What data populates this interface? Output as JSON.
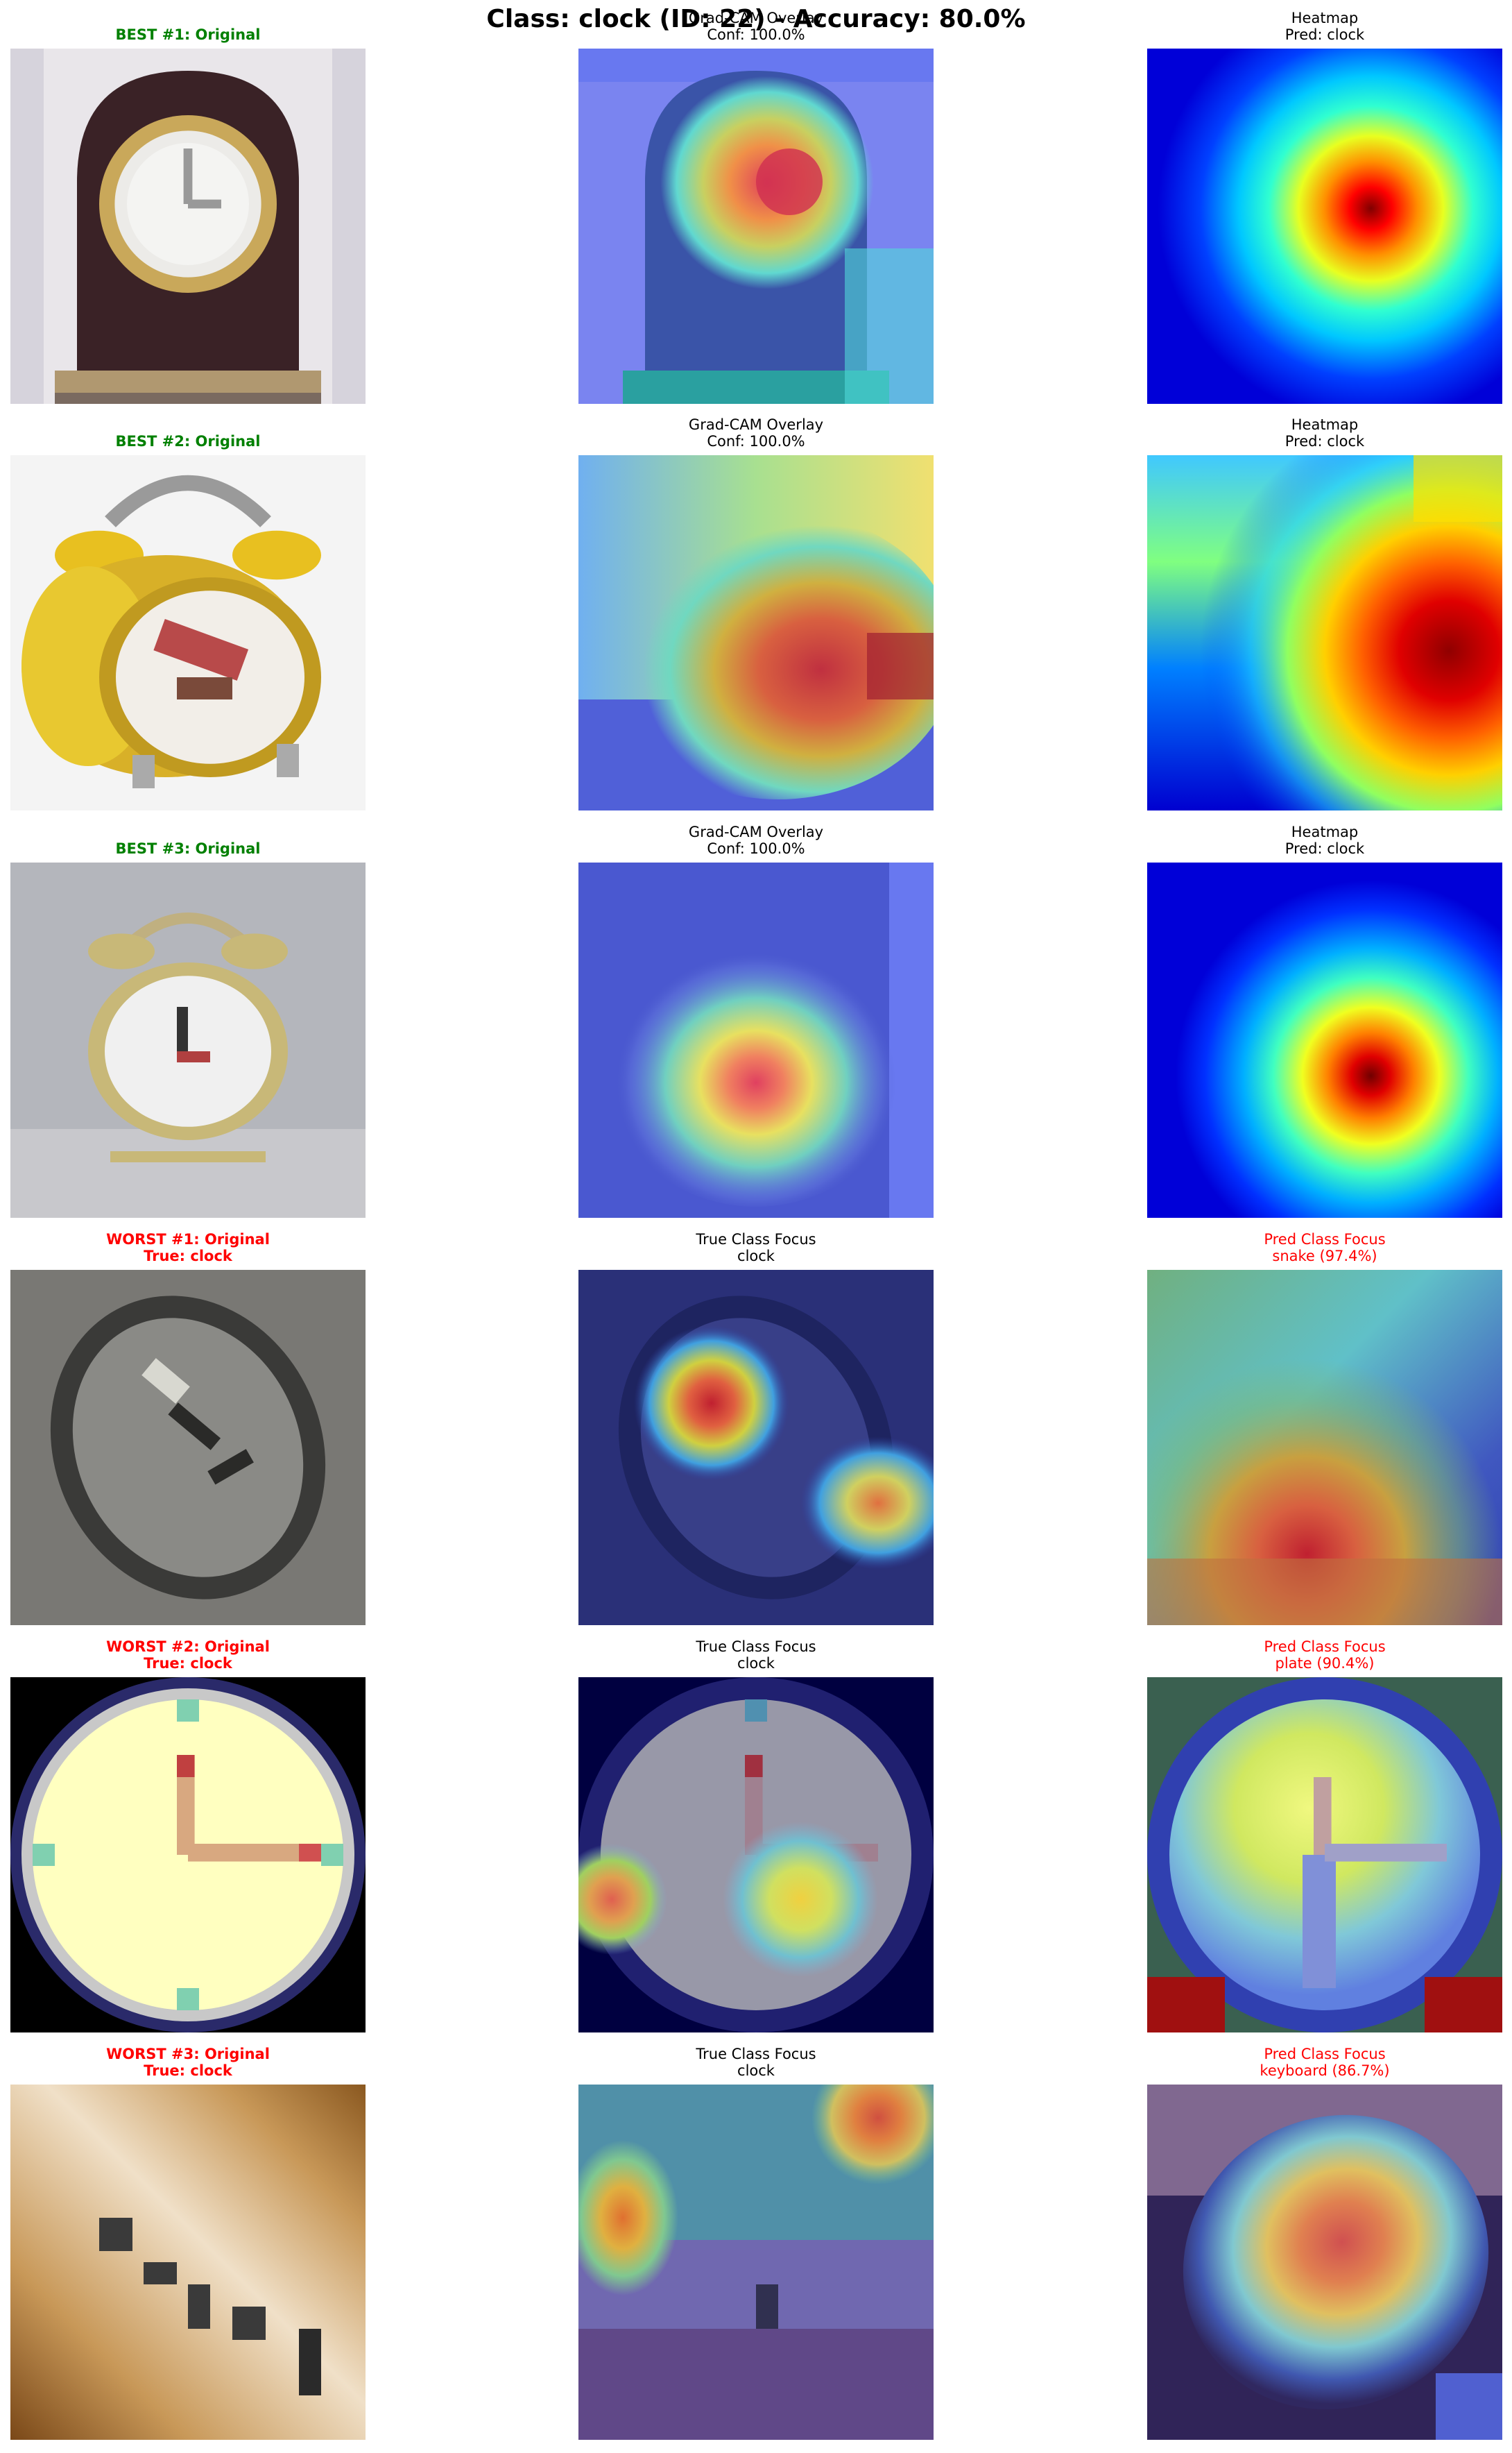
{
  "title": "Class: clock (ID: 22) - Accuracy: 80.0%",
  "rows": [
    {
      "kind": "best",
      "original_title": "BEST #1: Original",
      "overlay_title": "Grad-CAM Overlay",
      "overlay_sub": "Conf: 100.0%",
      "heat_title": "Heatmap",
      "heat_sub": "Pred: clock"
    },
    {
      "kind": "best",
      "original_title": "BEST #2: Original",
      "overlay_title": "Grad-CAM Overlay",
      "overlay_sub": "Conf: 100.0%",
      "heat_title": "Heatmap",
      "heat_sub": "Pred: clock"
    },
    {
      "kind": "best",
      "original_title": "BEST #3: Original",
      "overlay_title": "Grad-CAM Overlay",
      "overlay_sub": "Conf: 100.0%",
      "heat_title": "Heatmap",
      "heat_sub": "Pred: clock"
    },
    {
      "kind": "worst",
      "original_title": "WORST #1: Original",
      "original_sub": "True: clock",
      "overlay_title": "True Class Focus",
      "overlay_sub": "clock",
      "heat_title": "Pred Class Focus",
      "heat_sub": "snake (97.4%)"
    },
    {
      "kind": "worst",
      "original_title": "WORST #2: Original",
      "original_sub": "True: clock",
      "overlay_title": "True Class Focus",
      "overlay_sub": "clock",
      "heat_title": "Pred Class Focus",
      "heat_sub": "plate (90.4%)"
    },
    {
      "kind": "worst",
      "original_title": "WORST #3: Original",
      "original_sub": "True: clock",
      "overlay_title": "True Class Focus",
      "overlay_sub": "clock",
      "heat_title": "Pred Class Focus",
      "heat_sub": "keyboard (86.7%)"
    }
  ],
  "colors": {
    "best": "#008000",
    "worst": "#ff0000"
  }
}
